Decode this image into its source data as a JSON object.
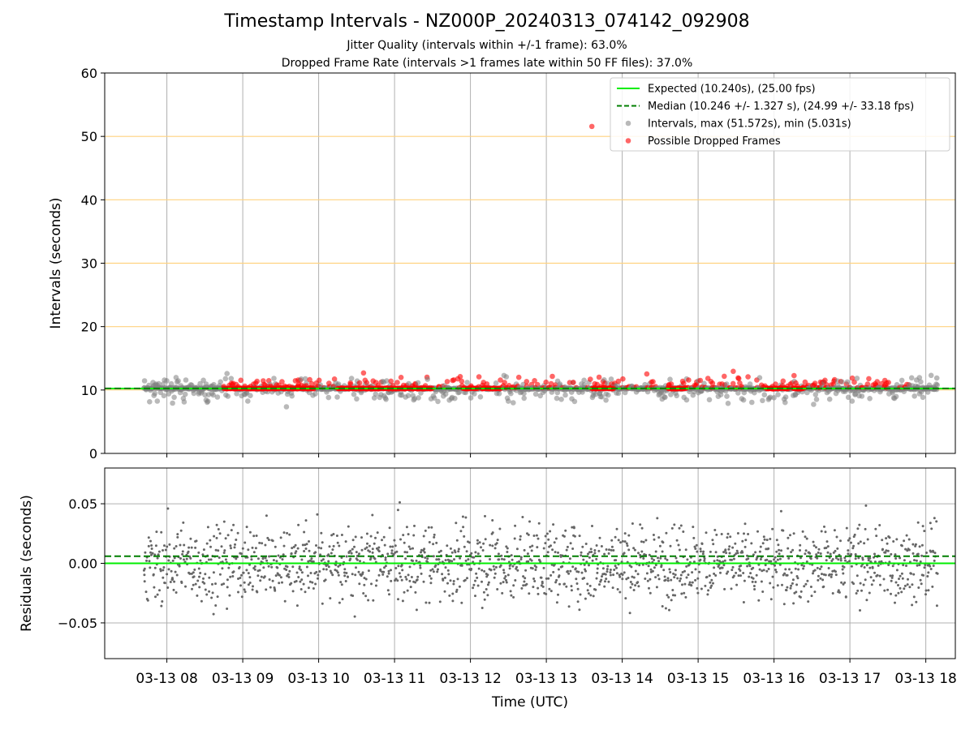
{
  "figure": {
    "title": "Timestamp Intervals - NZ000P_20240313_074142_092908",
    "subtitle_1": "Jitter Quality (intervals within +/-1 frame): 63.0%",
    "subtitle_2": "Dropped Frame Rate (intervals >1 frames late within 50 FF files): 37.0%"
  },
  "colors": {
    "expected": "#00ee00",
    "median": "#007f00",
    "intervals": "#808080",
    "dropped": "#ff0000",
    "threshold_lines": "#ffd27f",
    "grid": "#b0b0b0"
  },
  "chart_data": [
    {
      "type": "scatter",
      "panel": "top",
      "ylabel": "Intervals (seconds)",
      "ylim": [
        0,
        60
      ],
      "yticks": [
        "0",
        "10",
        "20",
        "30",
        "40",
        "50",
        "60"
      ],
      "x_range_hours": [
        7.181,
        18.389
      ],
      "x_data_hours": [
        7.695,
        18.154
      ],
      "horizontal_bands": [
        10,
        20,
        30,
        40,
        50
      ],
      "expected_value": 10.24,
      "median_value": 10.246,
      "outlier_point": {
        "x": 13.6,
        "y": 51.572
      },
      "interval_max": 51.572,
      "interval_min": 5.031,
      "series": [
        {
          "name": "Expected (10.240s), (25.00 fps)"
        },
        {
          "name": "Median (10.246 +/- 1.327 s), (24.99 +/- 33.18 fps)"
        },
        {
          "name": "Intervals, max (51.572s), min (5.031s)"
        },
        {
          "name": "Possible Dropped Frames"
        }
      ],
      "legend_placement": "top-right"
    },
    {
      "type": "scatter",
      "panel": "bottom",
      "xlabel": "Time (UTC)",
      "ylabel": "Residuals (seconds)",
      "ylim": [
        -0.08,
        0.08
      ],
      "yticks": [
        "−0.05",
        "0.00",
        "0.05"
      ],
      "ytick_values": [
        -0.05,
        0.0,
        0.05
      ],
      "expected_residual": 0.0,
      "median_residual": 0.006,
      "residual_spread": 0.05,
      "xticks": [
        "03-13 08",
        "03-13 09",
        "03-13 10",
        "03-13 11",
        "03-13 12",
        "03-13 13",
        "03-13 14",
        "03-13 15",
        "03-13 16",
        "03-13 17",
        "03-13 18"
      ],
      "xtick_values": [
        8,
        9,
        10,
        11,
        12,
        13,
        14,
        15,
        16,
        17,
        18
      ]
    }
  ]
}
